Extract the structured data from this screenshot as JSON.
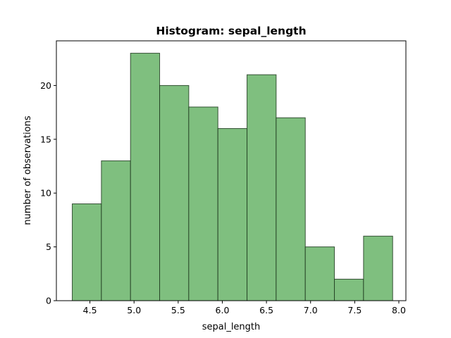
{
  "chart_data": {
    "type": "bar",
    "subtype": "histogram",
    "title": "Histogram: sepal_length",
    "xlabel": "sepal_length",
    "ylabel": "number of observations",
    "bin_edges": [
      4.3,
      4.63,
      4.96,
      5.29,
      5.62,
      5.95,
      6.28,
      6.61,
      6.94,
      7.27,
      7.6,
      7.93
    ],
    "values": [
      9,
      13,
      23,
      20,
      18,
      16,
      21,
      17,
      5,
      2,
      6
    ],
    "xlim": [
      4.12,
      8.08
    ],
    "ylim": [
      0,
      24.15
    ],
    "xticks": [
      4.5,
      5.0,
      5.5,
      6.0,
      6.5,
      7.0,
      7.5,
      8.0
    ],
    "xtick_labels": [
      "4.5",
      "5.0",
      "5.5",
      "6.0",
      "6.5",
      "7.0",
      "7.5",
      "8.0"
    ],
    "yticks": [
      0,
      5,
      10,
      15,
      20
    ],
    "ytick_labels": [
      "0",
      "5",
      "10",
      "15",
      "20"
    ],
    "bar_color": "#7fbf7f",
    "bar_edge_color": "#1f3a1f",
    "grid": false,
    "legend": false
  }
}
